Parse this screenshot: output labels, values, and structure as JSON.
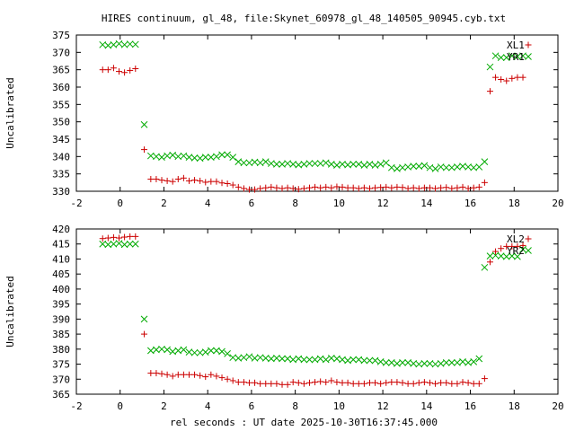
{
  "chart_data": {
    "title": "HIRES continuum, gl_48, file:Skynet_60978_gl_48_140505_90945.cyb.txt",
    "xlabel": "rel seconds : UT date 2025-10-30T16:37:45.000",
    "panels": [
      {
        "type": "scatter",
        "ylabel": "Uncalibrated",
        "xlim": [
          -2,
          20
        ],
        "ylim": [
          330,
          375
        ],
        "xticks": [
          -2,
          0,
          2,
          4,
          6,
          8,
          10,
          12,
          14,
          16,
          18,
          20
        ],
        "yticks": [
          330,
          335,
          340,
          345,
          350,
          355,
          360,
          365,
          370,
          375
        ],
        "series": [
          {
            "name": "XL1",
            "marker": "plus",
            "color": "#cc0000",
            "x": [
              -0.8,
              -0.55,
              -0.3,
              -0.05,
              0.2,
              0.45,
              0.7,
              1.1,
              1.4,
              1.65,
              1.9,
              2.15,
              2.4,
              2.65,
              2.9,
              3.15,
              3.4,
              3.65,
              3.9,
              4.15,
              4.4,
              4.65,
              4.9,
              5.15,
              5.4,
              5.65,
              5.9,
              6.15,
              6.4,
              6.65,
              6.9,
              7.15,
              7.4,
              7.65,
              7.9,
              8.15,
              8.4,
              8.65,
              8.9,
              9.15,
              9.4,
              9.65,
              9.9,
              10.15,
              10.4,
              10.65,
              10.9,
              11.15,
              11.4,
              11.65,
              11.9,
              12.15,
              12.4,
              12.65,
              12.9,
              13.15,
              13.4,
              13.65,
              13.9,
              14.15,
              14.4,
              14.65,
              14.9,
              15.15,
              15.4,
              15.65,
              15.9,
              16.15,
              16.4,
              16.65,
              16.9,
              17.15,
              17.4,
              17.65,
              17.9,
              18.15,
              18.4
            ],
            "y": [
              365,
              365,
              365.5,
              364.5,
              364.2,
              364.8,
              365.3,
              342,
              333.5,
              333.5,
              333.2,
              333,
              332.8,
              333.5,
              333.8,
              333,
              333.2,
              333,
              332.6,
              332.8,
              332.8,
              332.4,
              332.2,
              331.8,
              331.2,
              330.8,
              330.5,
              330.5,
              330.8,
              331,
              331.2,
              331,
              330.8,
              331,
              330.8,
              330.6,
              330.8,
              331,
              331.2,
              331,
              331.2,
              331,
              331.3,
              331.2,
              331,
              331,
              330.8,
              331,
              330.8,
              331,
              331.1,
              331.2,
              331,
              331.2,
              331.1,
              330.8,
              331,
              330.8,
              331,
              331,
              330.8,
              331,
              331.1,
              330.8,
              331,
              331.2,
              330.8,
              331,
              331.2,
              332.5,
              358.8,
              362.8,
              362.2,
              361.8,
              362.5,
              362.8,
              362.8
            ]
          },
          {
            "name": "YR1",
            "marker": "cross",
            "color": "#00aa00",
            "x": [
              -0.8,
              -0.55,
              -0.3,
              -0.05,
              0.2,
              0.45,
              0.7,
              1.1,
              1.4,
              1.65,
              1.9,
              2.15,
              2.4,
              2.65,
              2.9,
              3.15,
              3.4,
              3.65,
              3.9,
              4.15,
              4.4,
              4.65,
              4.9,
              5.15,
              5.4,
              5.65,
              5.9,
              6.15,
              6.4,
              6.65,
              6.9,
              7.15,
              7.4,
              7.65,
              7.9,
              8.15,
              8.4,
              8.65,
              8.9,
              9.15,
              9.4,
              9.65,
              9.9,
              10.15,
              10.4,
              10.65,
              10.9,
              11.15,
              11.4,
              11.65,
              11.9,
              12.15,
              12.4,
              12.65,
              12.9,
              13.15,
              13.4,
              13.65,
              13.9,
              14.15,
              14.4,
              14.65,
              14.9,
              15.15,
              15.4,
              15.65,
              15.9,
              16.15,
              16.4,
              16.65,
              16.9,
              17.15,
              17.4,
              17.65,
              17.9,
              18.15,
              18.4
            ],
            "y": [
              372.2,
              372,
              372.2,
              372.5,
              372.2,
              372.4,
              372.3,
              349.2,
              340.2,
              340,
              339.8,
              340.2,
              340.4,
              340,
              340.2,
              339.8,
              339.6,
              339.5,
              339.8,
              339.8,
              340,
              340.5,
              340.5,
              339.8,
              338.5,
              338.2,
              338.2,
              338.4,
              338.2,
              338.5,
              338,
              337.8,
              337.8,
              338,
              337.8,
              337.6,
              337.8,
              338,
              338,
              338,
              338.2,
              337.8,
              337.5,
              337.8,
              337.6,
              337.8,
              337.8,
              337.5,
              337.8,
              337.5,
              337.8,
              338.2,
              336.8,
              336.5,
              336.8,
              337,
              337.2,
              337.2,
              337.4,
              336.8,
              336.5,
              337,
              336.8,
              336.8,
              337,
              337.2,
              337,
              336.8,
              337,
              338.5,
              365.8,
              369,
              368.5,
              368.5,
              369,
              368.8,
              369
            ]
          }
        ],
        "legend": [
          {
            "label": "XL1",
            "marker": "plus",
            "color": "#cc0000"
          },
          {
            "label": "YR1",
            "marker": "cross",
            "color": "#00aa00"
          }
        ],
        "legend_position": "top-right",
        "grid": false
      },
      {
        "type": "scatter",
        "ylabel": "Uncalibrated",
        "xlim": [
          -2,
          20
        ],
        "ylim": [
          365,
          420
        ],
        "xticks": [
          -2,
          0,
          2,
          4,
          6,
          8,
          10,
          12,
          14,
          16,
          18,
          20
        ],
        "yticks": [
          365,
          370,
          375,
          380,
          385,
          390,
          395,
          400,
          405,
          410,
          415,
          420
        ],
        "series": [
          {
            "name": "XL2",
            "marker": "plus",
            "color": "#cc0000",
            "x": [
              -0.8,
              -0.55,
              -0.3,
              -0.05,
              0.2,
              0.45,
              0.7,
              1.1,
              1.4,
              1.65,
              1.9,
              2.15,
              2.4,
              2.65,
              2.9,
              3.15,
              3.4,
              3.65,
              3.9,
              4.15,
              4.4,
              4.65,
              4.9,
              5.15,
              5.4,
              5.65,
              5.9,
              6.15,
              6.4,
              6.65,
              6.9,
              7.15,
              7.4,
              7.65,
              7.9,
              8.15,
              8.4,
              8.65,
              8.9,
              9.15,
              9.4,
              9.65,
              9.9,
              10.15,
              10.4,
              10.65,
              10.9,
              11.15,
              11.4,
              11.65,
              11.9,
              12.15,
              12.4,
              12.65,
              12.9,
              13.15,
              13.4,
              13.65,
              13.9,
              14.15,
              14.4,
              14.65,
              14.9,
              15.15,
              15.4,
              15.65,
              15.9,
              16.15,
              16.4,
              16.65,
              16.9,
              17.15,
              17.4,
              17.65,
              17.9,
              18.15,
              18.4
            ],
            "y": [
              416.8,
              417,
              417.2,
              417,
              417.3,
              417.5,
              417.5,
              385,
              372,
              372,
              371.8,
              371.5,
              371,
              371.5,
              371.5,
              371.5,
              371.5,
              371.2,
              370.8,
              371.5,
              371,
              370.5,
              370,
              369.5,
              369,
              369,
              368.8,
              368.8,
              368.5,
              368.5,
              368.5,
              368.5,
              368.2,
              368.2,
              369,
              368.8,
              368.5,
              368.8,
              369,
              369.2,
              369,
              369.5,
              369,
              368.8,
              368.8,
              368.5,
              368.5,
              368.5,
              368.8,
              368.8,
              368.5,
              368.8,
              369,
              369,
              368.8,
              368.5,
              368.5,
              368.8,
              369,
              368.8,
              368.5,
              368.8,
              368.8,
              368.5,
              368.5,
              369,
              368.8,
              368.5,
              368.5,
              370.2,
              409,
              412.5,
              413.5,
              414.2,
              414.2,
              414.2,
              414.5
            ]
          },
          {
            "name": "YR2",
            "marker": "cross",
            "color": "#00aa00",
            "x": [
              -0.8,
              -0.55,
              -0.3,
              -0.05,
              0.2,
              0.45,
              0.7,
              1.1,
              1.4,
              1.65,
              1.9,
              2.15,
              2.4,
              2.65,
              2.9,
              3.15,
              3.4,
              3.65,
              3.9,
              4.15,
              4.4,
              4.65,
              4.9,
              5.15,
              5.4,
              5.65,
              5.9,
              6.15,
              6.4,
              6.65,
              6.9,
              7.15,
              7.4,
              7.65,
              7.9,
              8.15,
              8.4,
              8.65,
              8.9,
              9.15,
              9.4,
              9.65,
              9.9,
              10.15,
              10.4,
              10.65,
              10.9,
              11.15,
              11.4,
              11.65,
              11.9,
              12.15,
              12.4,
              12.65,
              12.9,
              13.15,
              13.4,
              13.65,
              13.9,
              14.15,
              14.4,
              14.65,
              14.9,
              15.15,
              15.4,
              15.65,
              15.9,
              16.15,
              16.4,
              16.65,
              16.9,
              17.15,
              17.4,
              17.65,
              17.9,
              18.15,
              18.4
            ],
            "y": [
              415,
              414.8,
              415,
              415.2,
              414.8,
              415,
              415,
              390,
              379.5,
              379.8,
              380,
              379.8,
              379.2,
              379.5,
              379.8,
              379,
              378.8,
              378.8,
              379,
              379.5,
              379.5,
              379.2,
              378.5,
              377.2,
              377,
              377.2,
              377.5,
              377,
              377.2,
              377,
              376.8,
              377,
              376.8,
              376.8,
              376.5,
              376.8,
              376.5,
              376.5,
              376.5,
              376.8,
              376.5,
              377,
              376.8,
              376.5,
              376.2,
              376.5,
              376.5,
              376.2,
              376.2,
              376.2,
              375.8,
              375.5,
              375.5,
              375.2,
              375.5,
              375.5,
              375.2,
              375,
              375.2,
              375.2,
              375,
              375.2,
              375.5,
              375.5,
              375.5,
              375.8,
              375.5,
              375.8,
              376.8,
              407.2,
              411,
              411.2,
              411,
              410.8,
              411,
              410.8,
              413.2
            ]
          }
        ],
        "legend": [
          {
            "label": "XL2",
            "marker": "plus",
            "color": "#cc0000"
          },
          {
            "label": "YR2",
            "marker": "cross",
            "color": "#00aa00"
          }
        ],
        "legend_position": "top-right",
        "grid": false
      }
    ]
  }
}
